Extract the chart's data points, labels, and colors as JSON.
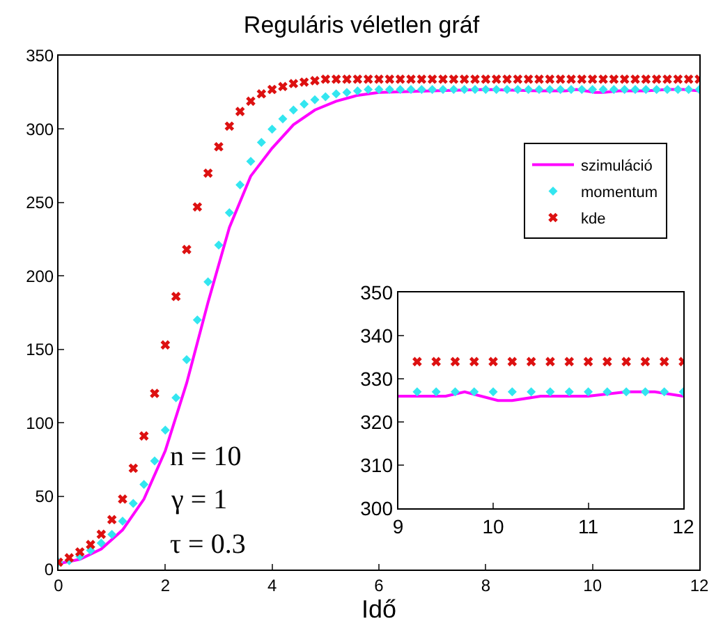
{
  "chart_data": [
    {
      "type": "scatter",
      "title": "Reguláris véletlen gráf",
      "xlabel": "Idő",
      "x": [
        0,
        0.2,
        0.4,
        0.6,
        0.8,
        1,
        1.2,
        1.4,
        1.6,
        1.8,
        2,
        2.2,
        2.4,
        2.6,
        2.8,
        3,
        3.2,
        3.4,
        3.6,
        3.8,
        4,
        4.2,
        4.4,
        4.6,
        4.8,
        5,
        5.2,
        5.4,
        5.6,
        5.8,
        6,
        6.2,
        6.4,
        6.6,
        6.8,
        7,
        7.2,
        7.4,
        7.6,
        7.8,
        8,
        8.2,
        8.4,
        8.6,
        8.8,
        9,
        9.2,
        9.4,
        9.6,
        9.8,
        10,
        10.2,
        10.4,
        10.6,
        10.8,
        11,
        11.2,
        11.4,
        11.6,
        11.8,
        12
      ],
      "series": [
        {
          "name": "szimuláció",
          "type": "line",
          "color": "#ff00ff",
          "marker": "none",
          "x": [
            0,
            0.4,
            0.8,
            1.2,
            1.6,
            2,
            2.4,
            2.8,
            3.2,
            3.6,
            4,
            4.4,
            4.8,
            5.2,
            5.6,
            6,
            7,
            8,
            9,
            9.5,
            9.7,
            10.05,
            10.2,
            10.5,
            10.7,
            11,
            11.4,
            11.7,
            12
          ],
          "values": [
            4,
            7,
            14,
            27,
            48,
            81,
            127,
            182,
            233,
            268,
            287,
            303,
            313,
            319,
            323,
            325,
            326,
            327,
            326,
            326,
            327,
            325,
            325,
            326,
            326,
            326,
            327,
            327,
            326
          ]
        },
        {
          "name": "momentum",
          "color": "#33e6f0",
          "marker": "diamond",
          "values": [
            5,
            6,
            9,
            13,
            18,
            24,
            33,
            45,
            58,
            74,
            95,
            117,
            143,
            170,
            196,
            221,
            243,
            262,
            278,
            291,
            300,
            307,
            313,
            317,
            320,
            322,
            324,
            325,
            326,
            327,
            327,
            327,
            327,
            327,
            327,
            327,
            327,
            327,
            327,
            327,
            327,
            327,
            327,
            327,
            327,
            327,
            327,
            327,
            327,
            327,
            327,
            327,
            327,
            327,
            327,
            327,
            327,
            327,
            327,
            327,
            327
          ]
        },
        {
          "name": "kde",
          "color": "#dd1111",
          "marker": "cross",
          "values": [
            5,
            8,
            12,
            17,
            24,
            34,
            48,
            69,
            91,
            120,
            153,
            186,
            218,
            247,
            270,
            288,
            302,
            312,
            319,
            324,
            327,
            329,
            331,
            332,
            333,
            334,
            334,
            334,
            334,
            334,
            334,
            334,
            334,
            334,
            334,
            334,
            334,
            334,
            334,
            334,
            334,
            334,
            334,
            334,
            334,
            334,
            334,
            334,
            334,
            334,
            334,
            334,
            334,
            334,
            334,
            334,
            334,
            334,
            334,
            334,
            334
          ]
        }
      ],
      "xlim": [
        0,
        12
      ],
      "xticks": [
        0,
        2,
        4,
        6,
        8,
        10,
        12
      ],
      "ylim": [
        0,
        350
      ],
      "yticks": [
        0,
        50,
        100,
        150,
        200,
        250,
        300,
        350
      ],
      "legend": "top right",
      "annotations": [
        "n = 10",
        "γ = 1",
        "τ = 0.3"
      ]
    },
    {
      "type": "scatter",
      "x": [
        9.2,
        9.4,
        9.6,
        9.8,
        10,
        10.2,
        10.4,
        10.6,
        10.8,
        11,
        11.2,
        11.4,
        11.6,
        11.8,
        12
      ],
      "series": [
        {
          "type": "line",
          "color": "#ff00ff",
          "marker": "none",
          "x": [
            9,
            9.5,
            9.7,
            10.05,
            10.2,
            10.5,
            10.7,
            11,
            11.4,
            11.7,
            12
          ],
          "values": [
            326,
            326,
            327,
            325,
            325,
            326,
            326,
            326,
            327,
            327,
            326
          ]
        },
        {
          "color": "#33e6f0",
          "marker": "diamond",
          "values": [
            327,
            327,
            327,
            327,
            327,
            327,
            327,
            327,
            327,
            327,
            327,
            327,
            327,
            327,
            327
          ]
        },
        {
          "color": "#dd1111",
          "marker": "cross",
          "values": [
            334,
            334,
            334,
            334,
            334,
            334,
            334,
            334,
            334,
            334,
            334,
            334,
            334,
            334,
            334
          ]
        }
      ],
      "xlim": [
        9,
        12
      ],
      "xticks": [
        9,
        10,
        11,
        12
      ],
      "ylim": [
        300,
        350
      ],
      "yticks": [
        300,
        310,
        320,
        330,
        340,
        350
      ]
    }
  ]
}
